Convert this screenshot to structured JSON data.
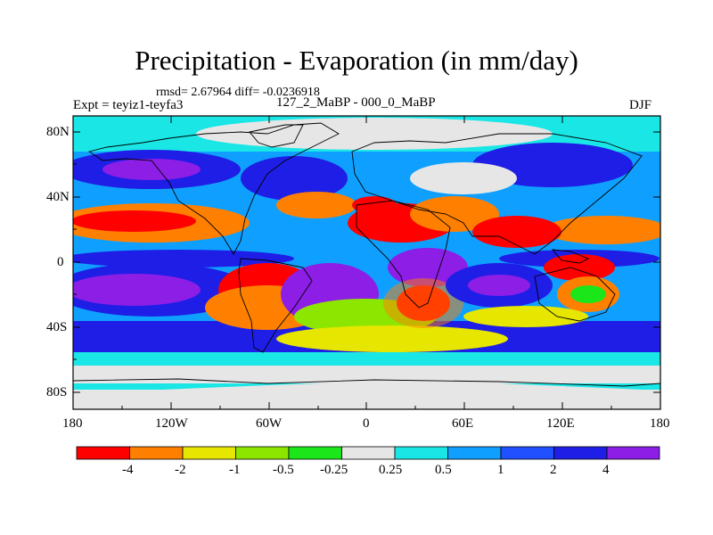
{
  "title": "Precipitation - Evaporation (in mm/day)",
  "stats": "rmsd= 2.67964 diff= -0.0236918",
  "experiment": "Expt = teyiz1-teyfa3",
  "subtitle": "127_2_MaBP - 000_0_MaBP",
  "season": "DJF",
  "lat_labels": [
    "80N",
    "40N",
    "0",
    "40S",
    "80S"
  ],
  "lon_labels": [
    "180",
    "120W",
    "60W",
    "0",
    "60E",
    "120E",
    "180"
  ],
  "colorbar": {
    "labels": [
      "-4",
      "-2",
      "-1",
      "-0.5",
      "-0.25",
      "0.25",
      "0.5",
      "1",
      "2",
      "4"
    ],
    "colors": [
      "#ff0000",
      "#ff8000",
      "#e6e600",
      "#8ce600",
      "#1ae61a",
      "#e6e6e6",
      "#1ae6e6",
      "#0fa0ff",
      "#2050ff",
      "#1e1ee6",
      "#8c1ee6"
    ]
  },
  "chart_data": {
    "type": "heatmap",
    "title": "Precipitation - Evaporation (in mm/day)",
    "units": "mm/day",
    "xrange": [
      -180,
      180
    ],
    "yrange": [
      -90,
      90
    ],
    "levels": [
      -4,
      -2,
      -1,
      -0.5,
      -0.25,
      0.25,
      0.5,
      1,
      2,
      4
    ]
  }
}
